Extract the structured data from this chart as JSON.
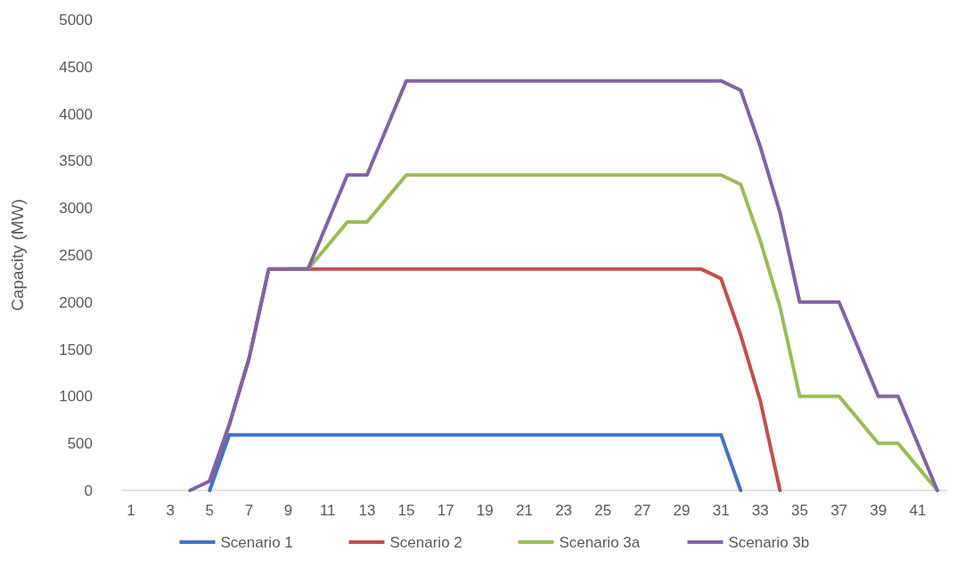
{
  "chart_data": {
    "type": "line",
    "ylabel": "Capacity (MW)",
    "x": [
      4,
      5,
      6,
      7,
      8,
      9,
      10,
      11,
      12,
      13,
      14,
      15,
      16,
      17,
      18,
      19,
      20,
      21,
      22,
      23,
      24,
      25,
      26,
      27,
      28,
      29,
      30,
      31,
      32,
      33,
      34,
      35,
      36,
      37,
      38,
      39,
      40,
      41,
      42
    ],
    "xlim": [
      0.5,
      42.5
    ],
    "xticks": [
      1,
      3,
      5,
      7,
      9,
      11,
      13,
      15,
      17,
      19,
      21,
      23,
      25,
      27,
      29,
      31,
      33,
      35,
      37,
      39,
      41
    ],
    "series": [
      {
        "name": "Scenario 1",
        "color": "#4472c4",
        "values": [
          null,
          0,
          590,
          590,
          590,
          590,
          590,
          590,
          590,
          590,
          590,
          590,
          590,
          590,
          590,
          590,
          590,
          590,
          590,
          590,
          590,
          590,
          590,
          590,
          590,
          590,
          590,
          590,
          0,
          null,
          null,
          null,
          null,
          null,
          null,
          null,
          null,
          null,
          null
        ]
      },
      {
        "name": "Scenario 2",
        "color": "#c0504d",
        "values": [
          null,
          100,
          700,
          1400,
          2350,
          2350,
          2350,
          2350,
          2350,
          2350,
          2350,
          2350,
          2350,
          2350,
          2350,
          2350,
          2350,
          2350,
          2350,
          2350,
          2350,
          2350,
          2350,
          2350,
          2350,
          2350,
          2350,
          2250,
          1650,
          950,
          0,
          null,
          null,
          null,
          null,
          null,
          null,
          null,
          null
        ]
      },
      {
        "name": "Scenario 3a",
        "color": "#9bbb59",
        "values": [
          null,
          null,
          null,
          null,
          null,
          2350,
          2350,
          2600,
          2850,
          2850,
          3100,
          3350,
          3350,
          3350,
          3350,
          3350,
          3350,
          3350,
          3350,
          3350,
          3350,
          3350,
          3350,
          3350,
          3350,
          3350,
          3350,
          3350,
          3250,
          2650,
          1950,
          1000,
          1000,
          1000,
          750,
          500,
          500,
          250,
          0
        ]
      },
      {
        "name": "Scenario 3b",
        "color": "#8064a2",
        "values": [
          0,
          100,
          700,
          1400,
          2350,
          2350,
          2350,
          2850,
          3350,
          3350,
          3850,
          4350,
          4350,
          4350,
          4350,
          4350,
          4350,
          4350,
          4350,
          4350,
          4350,
          4350,
          4350,
          4350,
          4350,
          4350,
          4350,
          4350,
          4250,
          3650,
          2950,
          2000,
          2000,
          2000,
          1500,
          1000,
          1000,
          500,
          0
        ]
      }
    ],
    "ylim": [
      0,
      5000
    ],
    "yticks": [
      0,
      500,
      1000,
      1500,
      2000,
      2500,
      3000,
      3500,
      4000,
      4500,
      5000
    ],
    "legend": "bottom",
    "grid": false
  }
}
